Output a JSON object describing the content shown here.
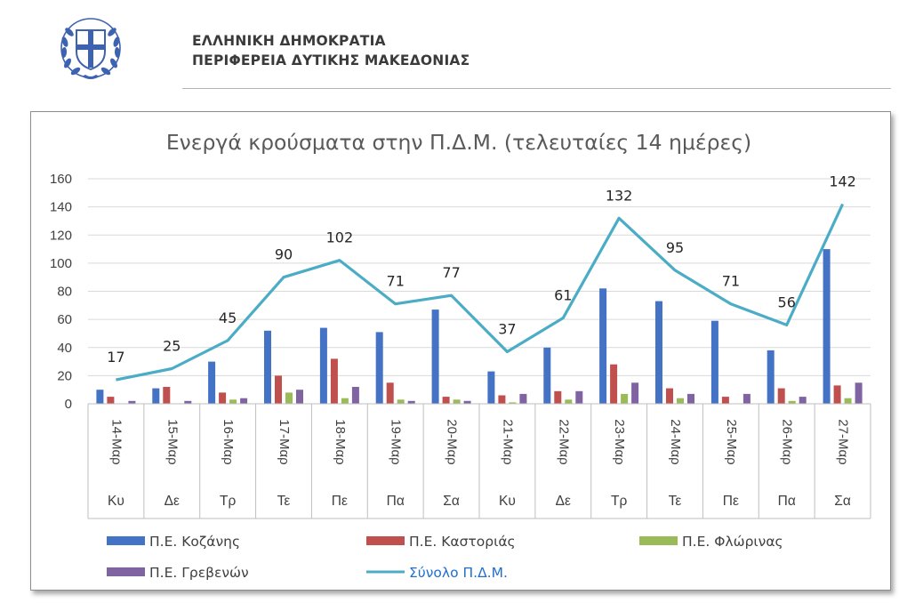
{
  "header": {
    "org_line_1": "ΕΛΛΗΝΙΚΗ ΔΗΜΟΚΡΑΤΙΑ",
    "org_line_2": "ΠΕΡΙΦΕΡΕΙΑ ΔΥΤΙΚΗΣ ΜΑΚΕΔΟΝΙΑΣ",
    "emblem": "greek-state-emblem"
  },
  "chart_data": {
    "type": "bar",
    "title": "Ενεργά κρούσματα στην Π.Δ.Μ. (τελευταίες 14 ημέρες)",
    "categories": [
      "14-Μαρ",
      "15-Μαρ",
      "16-Μαρ",
      "17-Μαρ",
      "18-Μαρ",
      "19-Μαρ",
      "20-Μαρ",
      "21-Μαρ",
      "22-Μαρ",
      "23-Μαρ",
      "24-Μαρ",
      "25-Μαρ",
      "26-Μαρ",
      "27-Μαρ"
    ],
    "weekdays": [
      "Κυ",
      "Δε",
      "Τρ",
      "Τε",
      "Πε",
      "Πα",
      "Σα",
      "Κυ",
      "Δε",
      "Τρ",
      "Τε",
      "Πε",
      "Πα",
      "Σα"
    ],
    "ylim": [
      0,
      160
    ],
    "yticks": [
      0,
      20,
      40,
      60,
      80,
      100,
      120,
      140,
      160
    ],
    "grid": true,
    "legend_position": "bottom",
    "series": [
      {
        "name": "Π.Ε. Κοζάνης",
        "kind": "bar",
        "color": "#4472c4",
        "values": [
          10,
          11,
          30,
          52,
          54,
          51,
          67,
          23,
          40,
          82,
          73,
          59,
          38,
          110
        ]
      },
      {
        "name": "Π.Ε. Καστοριάς",
        "kind": "bar",
        "color": "#c0504d",
        "values": [
          5,
          12,
          8,
          20,
          32,
          15,
          5,
          6,
          9,
          28,
          11,
          5,
          11,
          13
        ]
      },
      {
        "name": "Π.Ε. Φλώρινας",
        "kind": "bar",
        "color": "#9bbb59",
        "values": [
          0,
          0,
          3,
          8,
          4,
          3,
          3,
          1,
          3,
          7,
          4,
          0,
          2,
          4
        ]
      },
      {
        "name": "Π.Ε. Γρεβενών",
        "kind": "bar",
        "color": "#8064a2",
        "values": [
          2,
          2,
          4,
          10,
          12,
          2,
          2,
          7,
          9,
          15,
          7,
          7,
          5,
          15
        ]
      },
      {
        "name": "Σύνολο Π.Δ.Μ.",
        "kind": "line",
        "color": "#4bacc6",
        "values": [
          17,
          25,
          45,
          90,
          102,
          71,
          77,
          37,
          61,
          132,
          95,
          71,
          56,
          142
        ]
      }
    ]
  }
}
